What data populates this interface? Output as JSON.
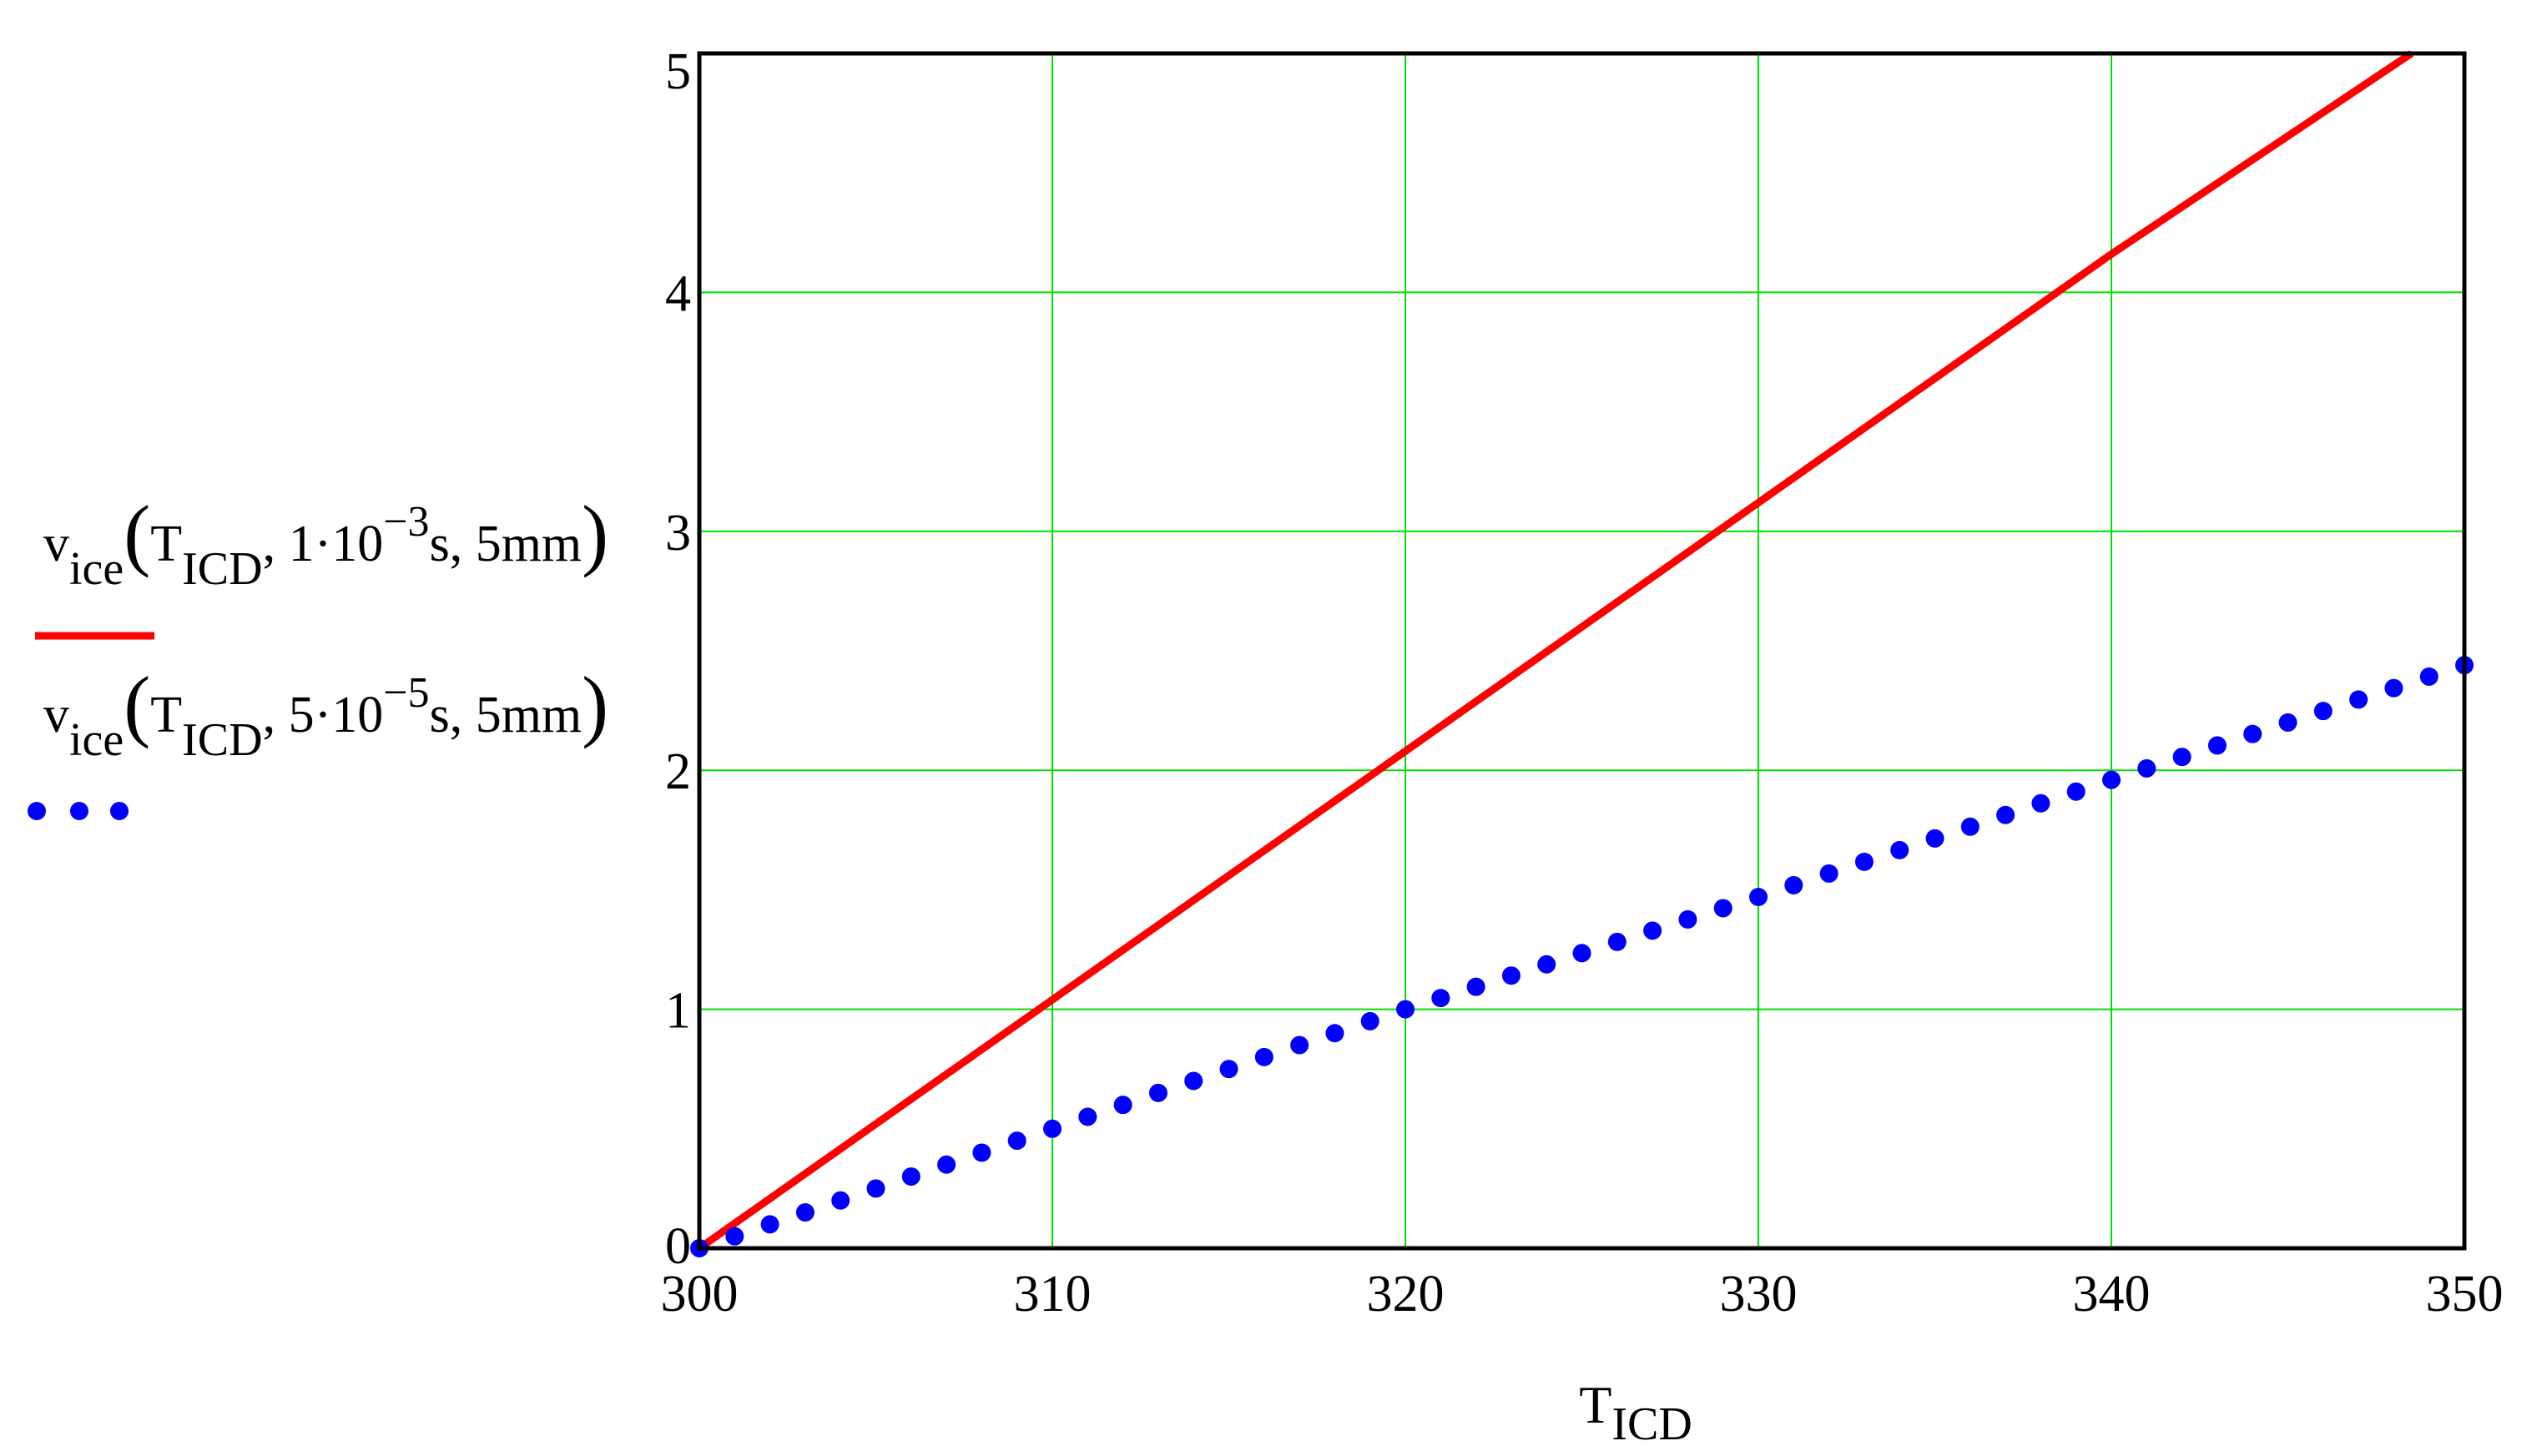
{
  "chart_data": {
    "type": "line",
    "xlabel": {
      "base": "T",
      "sub": "ICD"
    },
    "xlim": [
      300,
      350
    ],
    "ylim": [
      0,
      5
    ],
    "x_ticks": [
      "300",
      "310",
      "320",
      "330",
      "340",
      "350"
    ],
    "y_ticks": [
      "0",
      "1",
      "2",
      "3",
      "4",
      "5"
    ],
    "x_tick_values": [
      300,
      310,
      320,
      330,
      340,
      350
    ],
    "y_tick_values": [
      0,
      1,
      2,
      3,
      4,
      5
    ],
    "grid": true,
    "grid_color": "#00dd00",
    "legend_position": "left",
    "series": [
      {
        "style": "solid",
        "color": "#ff0000",
        "label": {
          "v": "v",
          "vsub": "ice",
          "t": "T",
          "tsub": "ICD",
          "coef": "1·10",
          "exp": "−3",
          "rest": "s, 5mm"
        },
        "x": [
          300,
          310,
          320,
          330,
          340,
          348.5
        ],
        "y": [
          0,
          1.04,
          2.08,
          3.12,
          4.16,
          5.0
        ]
      },
      {
        "style": "dotted",
        "color": "#0000ff",
        "label": {
          "v": "v",
          "vsub": "ice",
          "t": "T",
          "tsub": "ICD",
          "coef": "5·10",
          "exp": "−5",
          "rest": "s, 5mm"
        },
        "x": [
          300,
          310,
          320,
          330,
          340,
          350
        ],
        "y": [
          0,
          0.5,
          1.0,
          1.47,
          1.96,
          2.44
        ]
      }
    ]
  }
}
